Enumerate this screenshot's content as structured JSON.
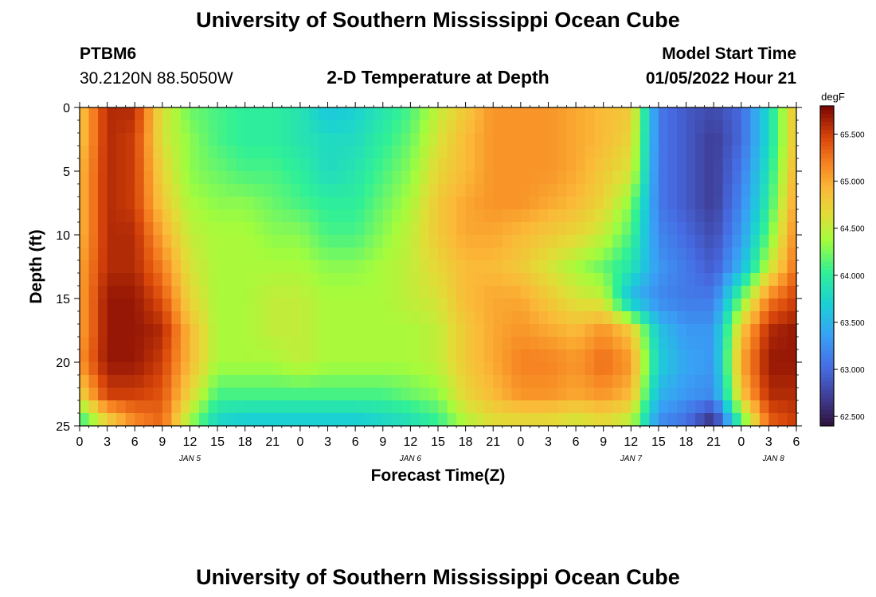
{
  "header": {
    "title": "University of Southern Mississippi Ocean Cube",
    "station_id": "PTBM6",
    "station_coords": "30.2120N  88.5050W",
    "plot_title": "2-D Temperature at Depth",
    "start_label": "Model Start Time",
    "start_value": "01/05/2022 Hour 21",
    "footer_title": "University of Southern Mississippi Ocean Cube"
  },
  "chart_data": {
    "type": "heatmap",
    "title": "2-D Temperature at Depth",
    "xlabel": "Forecast Time(Z)",
    "ylabel": "Depth (ft)",
    "x_tick_labels": [
      "0",
      "3",
      "6",
      "9",
      "12",
      "15",
      "18",
      "21",
      "0",
      "3",
      "6",
      "9",
      "12",
      "15",
      "18",
      "21",
      "0",
      "3",
      "6",
      "9",
      "12",
      "15",
      "18",
      "21",
      "0",
      "3",
      "6"
    ],
    "x_day_labels": [
      "JAN 5",
      "JAN 6",
      "JAN 7",
      "JAN 8"
    ],
    "x_range_hours": [
      0,
      78
    ],
    "y_ticks": [
      0,
      5,
      10,
      15,
      20,
      25
    ],
    "ylim": [
      0,
      25
    ],
    "y_inverted": true,
    "colorbar": {
      "unit": "degF",
      "ticks": [
        "65.500",
        "65.000",
        "64.500",
        "64.000",
        "63.500",
        "63.000",
        "62.500"
      ],
      "range": [
        62.4,
        65.8
      ]
    },
    "depths_ft": [
      0,
      2.5,
      5,
      7.5,
      10,
      12.5,
      15,
      17.5,
      20,
      22.5,
      25
    ],
    "hours": [
      0,
      3,
      6,
      9,
      12,
      15,
      18,
      21,
      24,
      27,
      30,
      33,
      36,
      39,
      42,
      45,
      48,
      51,
      54,
      57,
      60,
      63,
      66,
      69,
      72,
      75,
      78
    ],
    "values_degF": [
      [
        64.8,
        65.6,
        65.6,
        64.6,
        64.2,
        64.1,
        64.0,
        64.0,
        63.9,
        63.6,
        63.7,
        63.9,
        64.1,
        64.5,
        64.8,
        65.1,
        65.1,
        65.1,
        65.0,
        64.9,
        64.8,
        63.1,
        62.9,
        62.8,
        63.0,
        63.8,
        64.9
      ],
      [
        64.8,
        65.6,
        65.5,
        64.6,
        64.3,
        64.1,
        64.0,
        64.0,
        63.9,
        63.8,
        63.8,
        64.0,
        64.2,
        64.6,
        64.9,
        65.1,
        65.1,
        65.1,
        65.0,
        64.9,
        64.7,
        63.1,
        62.9,
        62.7,
        63.0,
        63.8,
        64.9
      ],
      [
        64.9,
        65.6,
        65.5,
        64.7,
        64.3,
        64.2,
        64.1,
        64.1,
        64.0,
        63.8,
        63.9,
        64.1,
        64.3,
        64.7,
        64.9,
        65.1,
        65.1,
        65.1,
        65.0,
        64.8,
        64.6,
        63.1,
        62.9,
        62.7,
        63.1,
        63.9,
        65.0
      ],
      [
        64.9,
        65.6,
        65.5,
        64.8,
        64.4,
        64.3,
        64.3,
        64.2,
        64.1,
        64.0,
        64.0,
        64.2,
        64.4,
        64.8,
        65.0,
        65.1,
        65.1,
        65.0,
        64.9,
        64.7,
        64.3,
        63.1,
        62.9,
        62.7,
        63.2,
        64.0,
        65.1
      ],
      [
        64.9,
        65.6,
        65.6,
        65.0,
        64.5,
        64.4,
        64.4,
        64.3,
        64.3,
        64.1,
        64.1,
        64.3,
        64.5,
        64.8,
        65.0,
        65.0,
        64.9,
        64.8,
        64.7,
        64.5,
        64.1,
        63.2,
        63.0,
        62.8,
        63.3,
        64.2,
        65.2
      ],
      [
        65.0,
        65.6,
        65.6,
        65.2,
        64.6,
        64.4,
        64.4,
        64.4,
        64.4,
        64.3,
        64.3,
        64.4,
        64.5,
        64.7,
        64.9,
        64.9,
        64.8,
        64.6,
        64.4,
        64.2,
        63.9,
        63.3,
        63.1,
        62.9,
        63.5,
        64.5,
        65.3
      ],
      [
        65.0,
        65.7,
        65.7,
        65.4,
        64.7,
        64.4,
        64.4,
        64.5,
        64.5,
        64.4,
        64.4,
        64.4,
        64.5,
        64.6,
        64.9,
        65.0,
        65.0,
        64.8,
        64.6,
        64.5,
        63.5,
        63.2,
        63.1,
        63.1,
        64.2,
        65.2,
        65.5
      ],
      [
        65.0,
        65.7,
        65.7,
        65.6,
        64.9,
        64.4,
        64.4,
        64.5,
        64.5,
        64.4,
        64.4,
        64.4,
        64.4,
        64.5,
        64.8,
        65.0,
        65.1,
        65.0,
        64.9,
        65.1,
        64.8,
        63.6,
        63.3,
        63.3,
        64.8,
        65.6,
        65.7
      ],
      [
        65.1,
        65.7,
        65.7,
        65.5,
        64.9,
        64.4,
        64.4,
        64.4,
        64.5,
        64.4,
        64.4,
        64.4,
        64.4,
        64.5,
        64.8,
        65.0,
        65.2,
        65.2,
        65.1,
        65.3,
        65.1,
        63.7,
        63.4,
        63.3,
        65.0,
        65.7,
        65.7
      ],
      [
        64.7,
        65.5,
        65.5,
        65.4,
        64.7,
        64.1,
        64.1,
        64.1,
        64.1,
        64.1,
        64.1,
        64.1,
        64.2,
        64.3,
        64.7,
        64.9,
        65.1,
        65.1,
        65.0,
        65.1,
        64.9,
        63.5,
        63.3,
        63.2,
        64.8,
        65.6,
        65.6
      ],
      [
        63.9,
        64.6,
        65.1,
        65.3,
        64.3,
        63.7,
        63.6,
        63.6,
        63.6,
        63.6,
        63.6,
        63.7,
        63.8,
        64.0,
        64.4,
        64.6,
        64.6,
        64.6,
        64.5,
        64.6,
        64.4,
        63.2,
        63.0,
        62.5,
        64.0,
        65.3,
        65.5
      ]
    ]
  }
}
